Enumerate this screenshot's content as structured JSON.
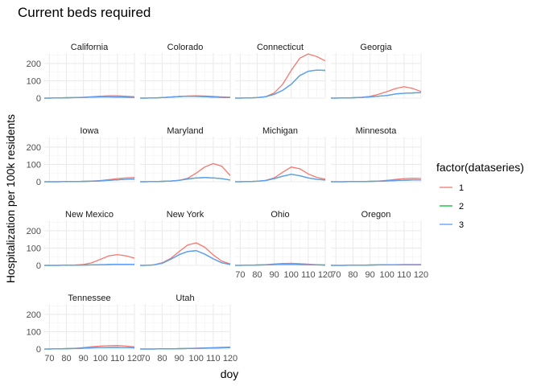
{
  "chart_data": {
    "type": "line",
    "title": "Current beds required",
    "xlabel": "doy",
    "ylabel": "Hospitalization per 100k residents",
    "xlim": [
      67,
      120
    ],
    "ylim": [
      0,
      260
    ],
    "x_ticks": [
      70,
      80,
      90,
      100,
      110,
      120
    ],
    "x_tick_labels": [
      "70",
      "80",
      "90",
      "100",
      "110",
      "120"
    ],
    "y_ticks": [
      0,
      100,
      200
    ],
    "y_tick_labels": [
      "0",
      "100",
      "200"
    ],
    "grid": true,
    "legend": {
      "title": "factor(dataseries)",
      "placement": "right",
      "entries": [
        {
          "label": "1",
          "color": "#F8766D"
        },
        {
          "label": "2",
          "color": "#00BA38"
        },
        {
          "label": "3",
          "color": "#619CFF"
        }
      ]
    },
    "series_colors": {
      "1": "#F8766D",
      "2": "#00BA38",
      "3": "#619CFF"
    },
    "x": [
      67,
      70,
      75,
      80,
      85,
      90,
      95,
      100,
      105,
      110,
      115,
      120
    ],
    "panels": [
      {
        "name": "California",
        "series": {
          "1": [
            0,
            0,
            1,
            2,
            3,
            5,
            8,
            11,
            13,
            13,
            11,
            8
          ],
          "2": [
            0,
            0,
            1,
            2,
            3,
            4,
            6,
            7,
            7,
            6,
            5,
            4
          ],
          "3": [
            0,
            0,
            1,
            2,
            3,
            4,
            6,
            7,
            7,
            6,
            5,
            4
          ]
        }
      },
      {
        "name": "Colorado",
        "series": {
          "1": [
            0,
            0,
            1,
            3,
            6,
            9,
            12,
            13,
            12,
            10,
            7,
            5
          ],
          "2": [
            0,
            0,
            1,
            3,
            6,
            9,
            11,
            10,
            8,
            6,
            4,
            3
          ],
          "3": [
            0,
            0,
            1,
            3,
            6,
            9,
            11,
            10,
            8,
            6,
            4,
            3
          ]
        }
      },
      {
        "name": "Connecticut",
        "series": {
          "1": [
            0,
            0,
            1,
            3,
            8,
            30,
            80,
            160,
            230,
            255,
            240,
            215
          ],
          "2": [
            0,
            0,
            1,
            3,
            8,
            22,
            45,
            80,
            130,
            155,
            162,
            160
          ],
          "3": [
            0,
            0,
            1,
            3,
            8,
            22,
            45,
            80,
            130,
            155,
            162,
            160
          ]
        }
      },
      {
        "name": "Georgia",
        "series": {
          "1": [
            0,
            0,
            1,
            2,
            5,
            10,
            22,
            38,
            55,
            66,
            56,
            38
          ],
          "2": [
            0,
            0,
            1,
            2,
            4,
            7,
            11,
            15,
            24,
            28,
            30,
            32
          ],
          "3": [
            0,
            0,
            1,
            2,
            4,
            7,
            11,
            15,
            24,
            28,
            30,
            32
          ]
        }
      },
      {
        "name": "Iowa",
        "series": {
          "1": [
            0,
            0,
            0,
            1,
            1,
            2,
            4,
            7,
            12,
            18,
            22,
            24
          ],
          "2": [
            0,
            0,
            0,
            1,
            1,
            2,
            3,
            5,
            8,
            11,
            14,
            16
          ],
          "3": [
            0,
            0,
            0,
            1,
            1,
            2,
            3,
            5,
            8,
            11,
            14,
            16
          ]
        }
      },
      {
        "name": "Maryland",
        "series": {
          "1": [
            0,
            0,
            1,
            2,
            4,
            8,
            20,
            50,
            85,
            105,
            90,
            35
          ],
          "2": [
            0,
            0,
            1,
            2,
            4,
            8,
            16,
            22,
            24,
            22,
            18,
            10
          ],
          "3": [
            0,
            0,
            1,
            2,
            4,
            8,
            16,
            22,
            24,
            22,
            18,
            10
          ]
        }
      },
      {
        "name": "Michigan",
        "series": {
          "1": [
            0,
            0,
            1,
            3,
            8,
            22,
            55,
            85,
            75,
            45,
            25,
            15
          ],
          "2": [
            0,
            0,
            1,
            3,
            7,
            18,
            32,
            43,
            35,
            22,
            14,
            10
          ],
          "3": [
            0,
            0,
            1,
            3,
            7,
            18,
            32,
            43,
            35,
            22,
            14,
            10
          ]
        }
      },
      {
        "name": "Minnesota",
        "series": {
          "1": [
            0,
            0,
            0,
            1,
            1,
            2,
            4,
            8,
            13,
            18,
            20,
            19
          ],
          "2": [
            0,
            0,
            0,
            1,
            1,
            2,
            3,
            5,
            7,
            9,
            10,
            10
          ],
          "3": [
            0,
            0,
            0,
            1,
            1,
            2,
            3,
            5,
            7,
            9,
            10,
            10
          ]
        }
      },
      {
        "name": "New Mexico",
        "series": {
          "1": [
            0,
            0,
            0,
            1,
            2,
            5,
            15,
            35,
            55,
            62,
            55,
            42
          ],
          "2": [
            0,
            0,
            0,
            1,
            1,
            2,
            3,
            4,
            5,
            6,
            6,
            6
          ],
          "3": [
            0,
            0,
            0,
            1,
            1,
            2,
            3,
            4,
            5,
            6,
            6,
            6
          ]
        }
      },
      {
        "name": "New York",
        "series": {
          "1": [
            0,
            0,
            3,
            15,
            40,
            80,
            118,
            130,
            105,
            60,
            25,
            8
          ],
          "2": [
            0,
            0,
            3,
            12,
            35,
            62,
            80,
            85,
            65,
            38,
            15,
            5
          ],
          "3": [
            0,
            0,
            3,
            12,
            35,
            62,
            80,
            85,
            65,
            38,
            15,
            5
          ]
        }
      },
      {
        "name": "Ohio",
        "series": {
          "1": [
            0,
            0,
            1,
            2,
            4,
            8,
            11,
            12,
            10,
            7,
            4,
            2
          ],
          "2": [
            0,
            0,
            1,
            2,
            3,
            5,
            6,
            6,
            5,
            4,
            3,
            2
          ],
          "3": [
            0,
            0,
            1,
            2,
            3,
            5,
            6,
            6,
            5,
            4,
            3,
            2
          ]
        }
      },
      {
        "name": "Oregon",
        "series": {
          "1": [
            0,
            0,
            0,
            1,
            1,
            2,
            3,
            4,
            4,
            5,
            5,
            5
          ],
          "2": [
            0,
            0,
            0,
            1,
            1,
            2,
            3,
            4,
            4,
            4,
            4,
            4
          ],
          "3": [
            0,
            0,
            0,
            1,
            1,
            2,
            3,
            4,
            4,
            4,
            4,
            4
          ]
        }
      },
      {
        "name": "Tennessee",
        "series": {
          "1": [
            0,
            0,
            1,
            2,
            4,
            8,
            13,
            17,
            19,
            20,
            17,
            12
          ],
          "2": [
            0,
            0,
            1,
            2,
            3,
            5,
            7,
            8,
            9,
            9,
            8,
            7
          ],
          "3": [
            0,
            0,
            1,
            2,
            3,
            5,
            7,
            8,
            9,
            9,
            8,
            7
          ]
        }
      },
      {
        "name": "Utah",
        "series": {
          "1": [
            0,
            0,
            0,
            1,
            1,
            2,
            3,
            5,
            6,
            8,
            10,
            11
          ],
          "2": [
            0,
            0,
            0,
            1,
            1,
            2,
            3,
            4,
            5,
            6,
            7,
            8
          ],
          "3": [
            0,
            0,
            0,
            1,
            1,
            2,
            3,
            4,
            5,
            6,
            7,
            8
          ]
        }
      }
    ]
  }
}
